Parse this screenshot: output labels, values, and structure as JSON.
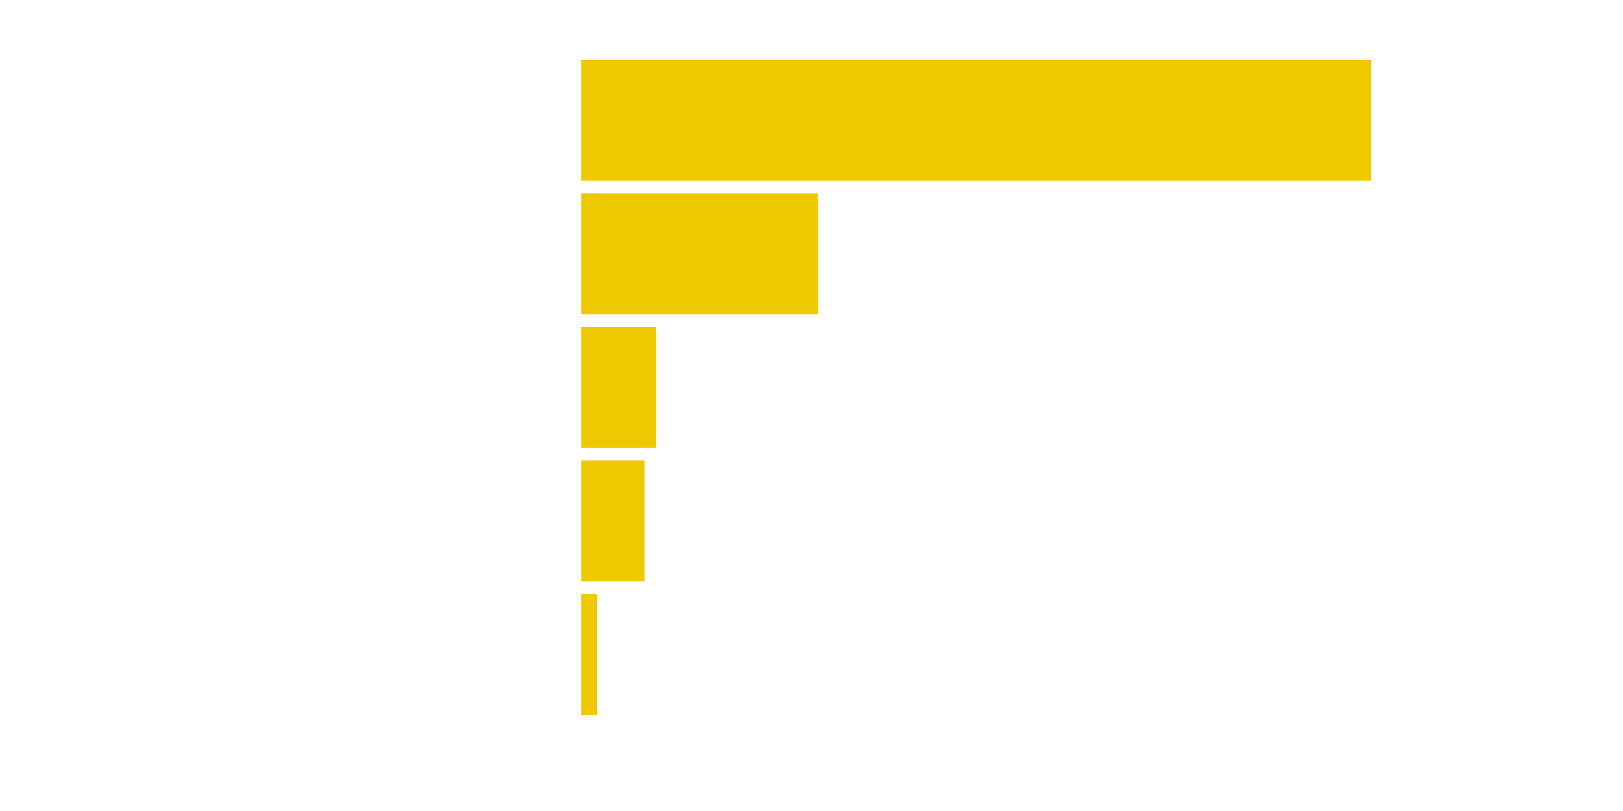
{
  "chart_data": {
    "type": "bar",
    "orientation": "horizontal",
    "title": "",
    "xlabel": "",
    "ylabel": "",
    "categories": [
      "",
      "",
      "",
      "",
      ""
    ],
    "values": [
      100,
      30,
      9.5,
      8,
      2
    ],
    "xlim": [
      0,
      100
    ],
    "grid": false,
    "legend": "none",
    "colors": {
      "bar": "#EEC900",
      "background": "#FFFFFF"
    }
  }
}
